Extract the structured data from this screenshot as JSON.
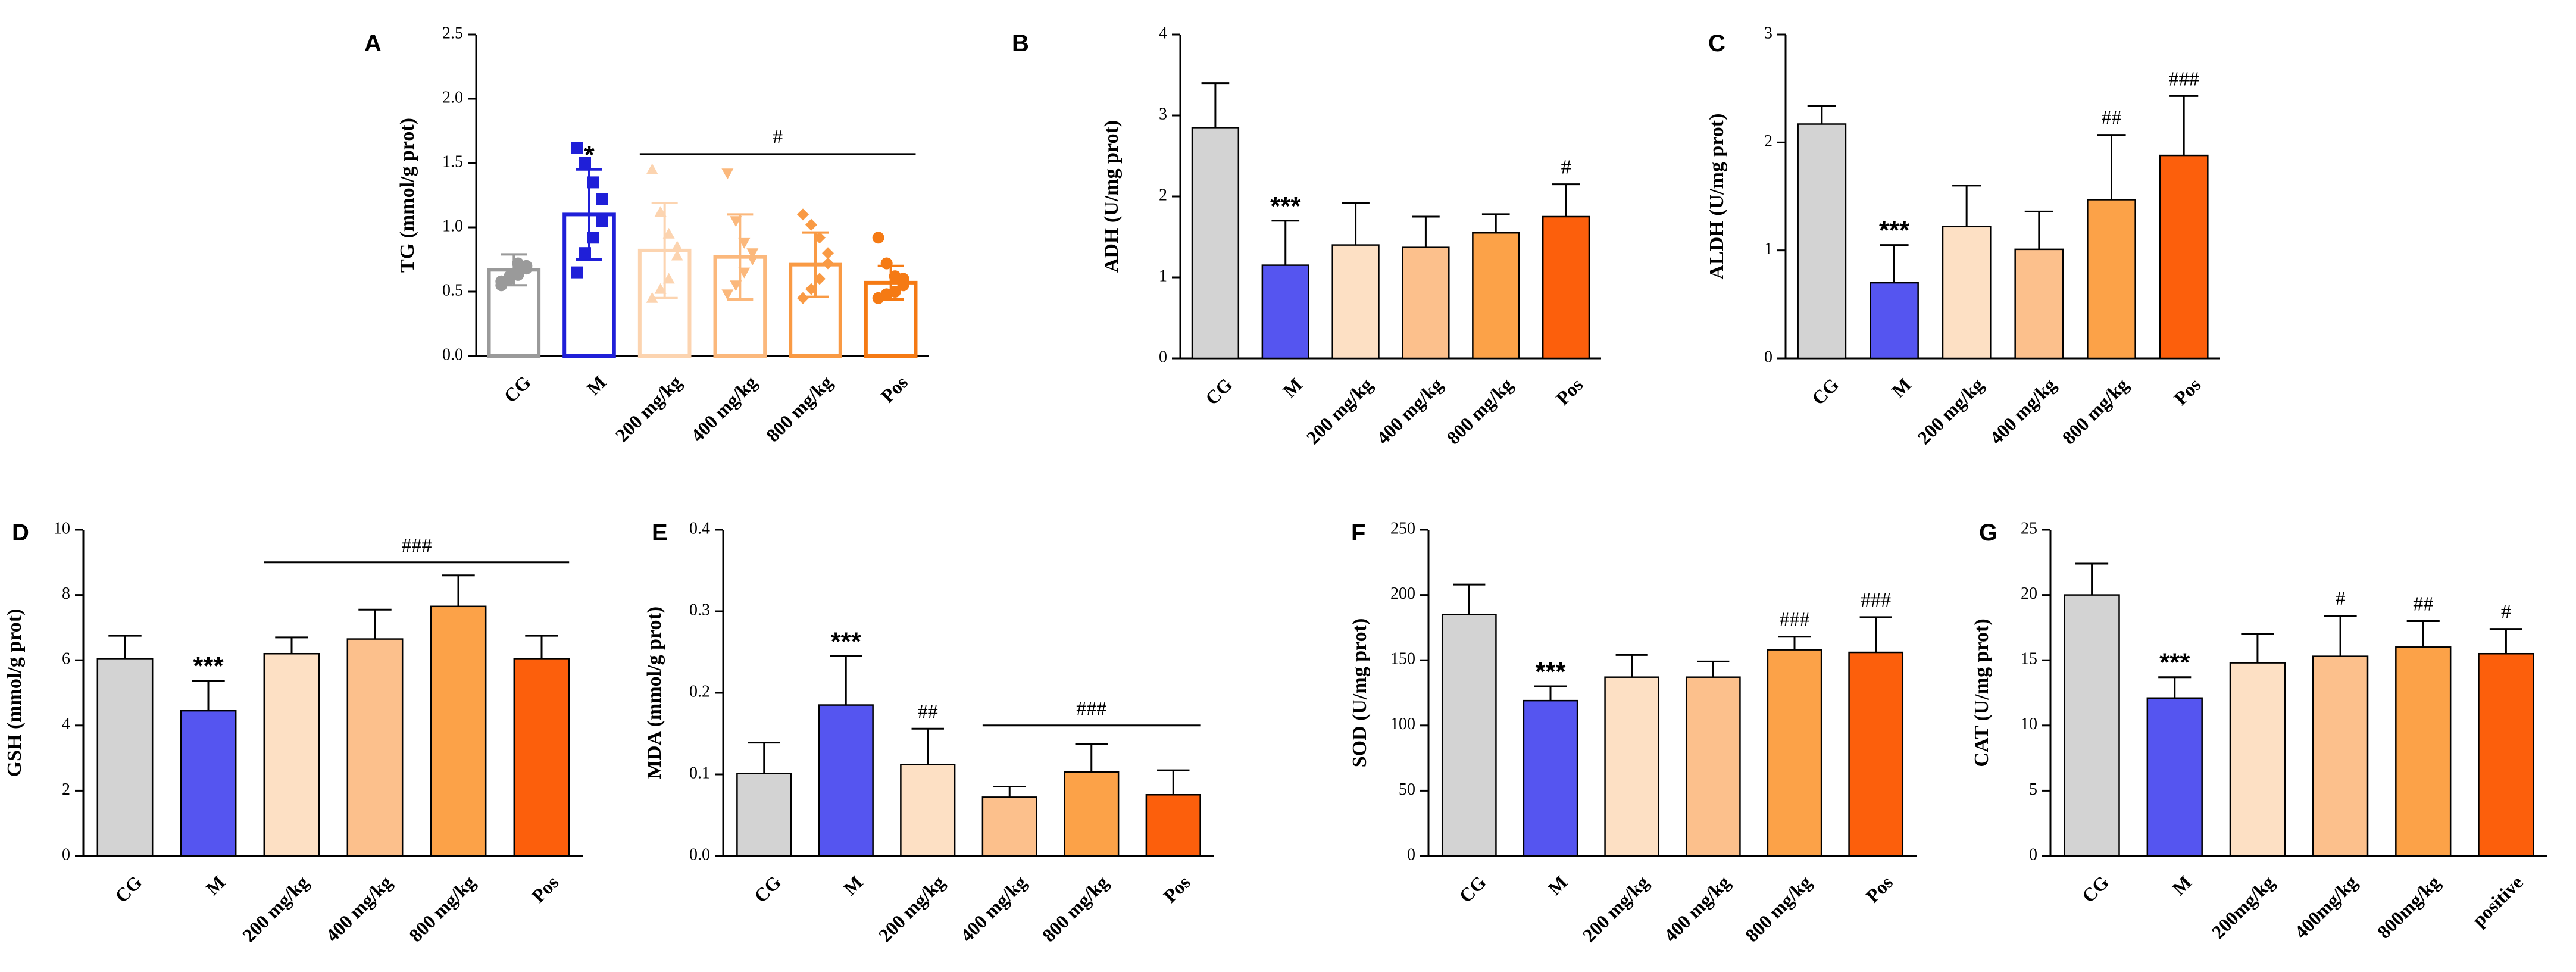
{
  "colors": {
    "CG": "#d3d3d3",
    "M": "#5555f0",
    "200": "#fde0c4",
    "400": "#fcc08c",
    "800": "#fca248",
    "Pos": "#fc5f0c",
    "M_outline": "#1f1fd8",
    "CG_outline": "#9a9a9a",
    "A200": "#fcd4b0",
    "A400": "#fbb87c",
    "A800": "#f99a44",
    "APos": "#f57a14"
  },
  "chart_data": [
    {
      "panel": "A",
      "type": "bar",
      "style": "scatter-outline",
      "ylabel": "TG (mmol/g prot)",
      "ylim": [
        0,
        2.5
      ],
      "yticks": [
        "0.0",
        "0.5",
        "1.0",
        "1.5",
        "2.0",
        "2.5"
      ],
      "categories": [
        "CG",
        "M",
        "200 mg/kg",
        "400 mg/kg",
        "800 mg/kg",
        "Pos"
      ],
      "values": [
        0.67,
        1.1,
        0.82,
        0.77,
        0.71,
        0.57
      ],
      "errors": [
        0.12,
        0.35,
        0.37,
        0.33,
        0.25,
        0.13
      ],
      "points": [
        [
          0.55,
          0.6,
          0.63,
          0.68,
          0.7,
          0.72,
          0.62,
          0.58
        ],
        [
          1.62,
          1.5,
          1.35,
          1.22,
          1.05,
          0.92,
          0.8,
          0.65
        ],
        [
          1.45,
          1.12,
          0.95,
          0.85,
          0.78,
          0.6,
          0.52,
          0.45
        ],
        [
          1.42,
          1.05,
          0.88,
          0.8,
          0.75,
          0.65,
          0.55,
          0.48
        ],
        [
          1.1,
          1.02,
          0.92,
          0.8,
          0.72,
          0.6,
          0.52,
          0.45
        ],
        [
          0.92,
          0.72,
          0.62,
          0.6,
          0.55,
          0.5,
          0.48,
          0.45
        ]
      ],
      "annotations": [
        "",
        "*",
        "",
        "",
        "",
        ""
      ],
      "bracket": {
        "from": 2,
        "to": 5,
        "label": "#",
        "y": 1.57
      }
    },
    {
      "panel": "B",
      "type": "bar",
      "ylabel": "ADH (U/mg prot)",
      "ylim": [
        0,
        4
      ],
      "yticks": [
        "0",
        "1",
        "2",
        "3",
        "4"
      ],
      "categories": [
        "CG",
        "M",
        "200 mg/kg",
        "400 mg/kg",
        "800 mg/kg",
        "Pos"
      ],
      "values": [
        2.85,
        1.15,
        1.4,
        1.37,
        1.55,
        1.75
      ],
      "errors": [
        0.55,
        0.55,
        0.52,
        0.38,
        0.23,
        0.4
      ],
      "annotations": [
        "",
        "***",
        "",
        "",
        "",
        "#"
      ]
    },
    {
      "panel": "C",
      "type": "bar",
      "ylabel": "ALDH (U/mg prot)",
      "ylim": [
        0,
        3
      ],
      "yticks": [
        "0",
        "1",
        "2",
        "3"
      ],
      "categories": [
        "CG",
        "M",
        "200 mg/kg",
        "400 mg/kg",
        "800 mg/kg",
        "Pos"
      ],
      "values": [
        2.17,
        0.7,
        1.22,
        1.01,
        1.47,
        1.88
      ],
      "errors": [
        0.17,
        0.35,
        0.38,
        0.35,
        0.6,
        0.55
      ],
      "annotations": [
        "",
        "***",
        "",
        "",
        "##",
        "###"
      ]
    },
    {
      "panel": "D",
      "type": "bar",
      "ylabel": "GSH (mmol/g prot)",
      "ylim": [
        0,
        10
      ],
      "yticks": [
        "0",
        "2",
        "4",
        "6",
        "8",
        "10"
      ],
      "categories": [
        "CG",
        "M",
        "200 mg/kg",
        "400 mg/kg",
        "800 mg/kg",
        "Pos"
      ],
      "values": [
        6.05,
        4.45,
        6.2,
        6.65,
        7.65,
        6.05
      ],
      "errors": [
        0.7,
        0.92,
        0.5,
        0.9,
        0.95,
        0.7
      ],
      "annotations": [
        "",
        "***",
        "",
        "",
        "",
        ""
      ],
      "bracket": {
        "from": 2,
        "to": 5,
        "label": "###",
        "y": 9.0
      }
    },
    {
      "panel": "E",
      "type": "bar",
      "ylabel": "MDA (mmol/g prot)",
      "ylim": [
        0,
        0.4
      ],
      "yticks": [
        "0.0",
        "0.1",
        "0.2",
        "0.3",
        "0.4"
      ],
      "categories": [
        "CG",
        "M",
        "200 mg/kg",
        "400 mg/kg",
        "800 mg/kg",
        "Pos"
      ],
      "values": [
        0.101,
        0.185,
        0.112,
        0.072,
        0.103,
        0.075
      ],
      "errors": [
        0.038,
        0.06,
        0.044,
        0.013,
        0.034,
        0.03
      ],
      "annotations": [
        "",
        "***",
        "##",
        "",
        "",
        ""
      ],
      "bracket": {
        "from": 3,
        "to": 5,
        "label": "###",
        "y": 0.16
      }
    },
    {
      "panel": "F",
      "type": "bar",
      "ylabel": "SOD (U/mg prot)",
      "ylim": [
        0,
        250
      ],
      "yticks": [
        "0",
        "50",
        "100",
        "150",
        "200",
        "250"
      ],
      "categories": [
        "CG",
        "M",
        "200 mg/kg",
        "400 mg/kg",
        "800 mg/kg",
        "Pos"
      ],
      "values": [
        185,
        119,
        137,
        137,
        158,
        156
      ],
      "errors": [
        23,
        11,
        17,
        12,
        10,
        27
      ],
      "annotations": [
        "",
        "***",
        "",
        "",
        "###",
        "###"
      ]
    },
    {
      "panel": "G",
      "type": "bar",
      "ylabel": "CAT (U/mg prot)",
      "ylim": [
        0,
        25
      ],
      "yticks": [
        "0",
        "5",
        "10",
        "15",
        "20",
        "25"
      ],
      "categories": [
        "CG",
        "M",
        "200mg/kg",
        "400mg/kg",
        "800mg/kg",
        "positive"
      ],
      "values": [
        20.0,
        12.1,
        14.8,
        15.3,
        16.0,
        15.5
      ],
      "errors": [
        2.4,
        1.6,
        2.2,
        3.1,
        2.0,
        1.9
      ],
      "annotations": [
        "",
        "***",
        "",
        "#",
        "##",
        "#"
      ]
    }
  ]
}
